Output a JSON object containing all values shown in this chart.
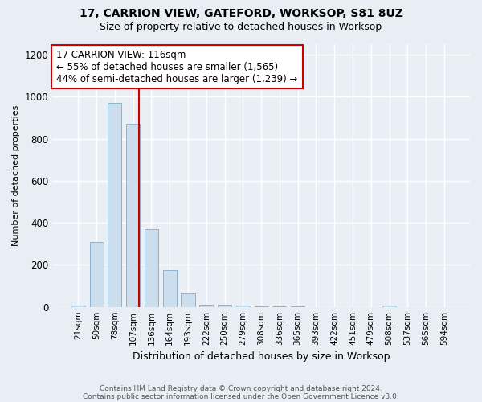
{
  "title1": "17, CARRION VIEW, GATEFORD, WORKSOP, S81 8UZ",
  "title2": "Size of property relative to detached houses in Worksop",
  "xlabel": "Distribution of detached houses by size in Worksop",
  "ylabel": "Number of detached properties",
  "categories": [
    "21sqm",
    "50sqm",
    "78sqm",
    "107sqm",
    "136sqm",
    "164sqm",
    "193sqm",
    "222sqm",
    "250sqm",
    "279sqm",
    "308sqm",
    "336sqm",
    "365sqm",
    "393sqm",
    "422sqm",
    "451sqm",
    "479sqm",
    "508sqm",
    "537sqm",
    "565sqm",
    "594sqm"
  ],
  "values": [
    5,
    310,
    970,
    870,
    370,
    175,
    65,
    10,
    10,
    5,
    2,
    2,
    1,
    0,
    0,
    0,
    0,
    5,
    0,
    0,
    0
  ],
  "bar_color": "#ccdded",
  "bar_edge_color": "#8ab4d0",
  "annotation_text": "17 CARRION VIEW: 116sqm\n← 55% of detached houses are smaller (1,565)\n44% of semi-detached houses are larger (1,239) →",
  "annotation_box_color": "#ffffff",
  "annotation_box_edge": "#cc0000",
  "vline_color": "#cc0000",
  "footer1": "Contains HM Land Registry data © Crown copyright and database right 2024.",
  "footer2": "Contains public sector information licensed under the Open Government Licence v3.0.",
  "ylim": [
    0,
    1250
  ],
  "yticks": [
    0,
    200,
    400,
    600,
    800,
    1000,
    1200
  ],
  "bg_color": "#e8eef4",
  "plot_bg_color": "#eaeff5",
  "grid_color": "#ffffff",
  "title1_fontsize": 10,
  "title2_fontsize": 9,
  "annotation_fontsize": 8.5,
  "xlabel_fontsize": 9,
  "ylabel_fontsize": 8,
  "bar_width": 0.75,
  "vline_x_index": 3.31
}
